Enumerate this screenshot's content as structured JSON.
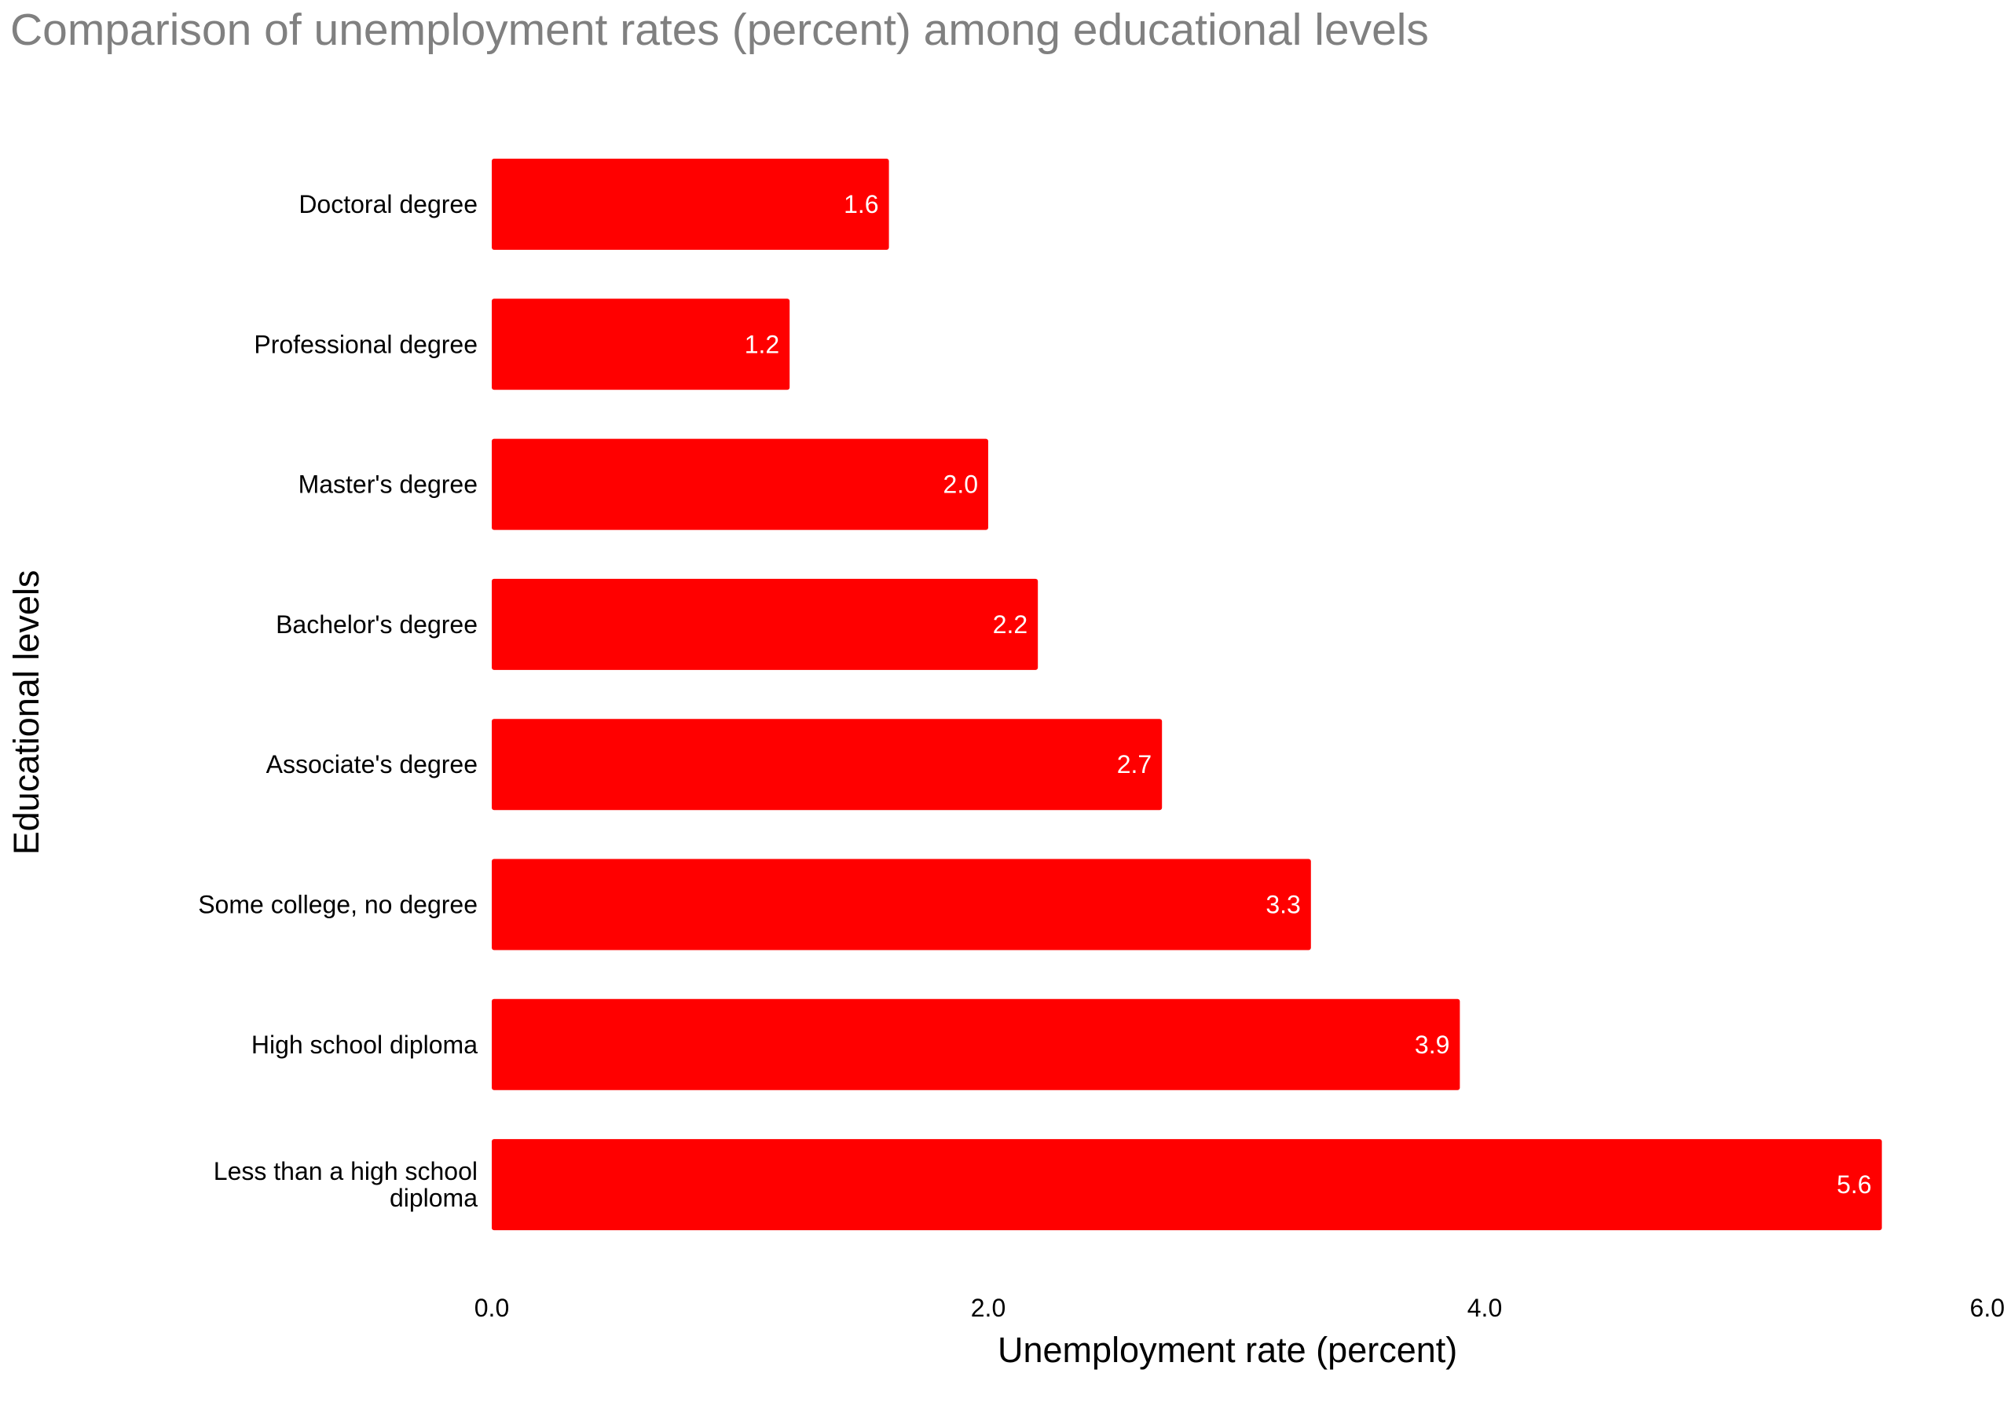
{
  "chart_data": {
    "type": "bar",
    "orientation": "horizontal",
    "title": "Comparison of unemployment rates (percent) among educational  levels",
    "xlabel": "Unemployment rate (percent)",
    "ylabel": "Educational levels",
    "categories": [
      "Doctoral degree",
      "Professional degree",
      "Master's degree",
      "Bachelor's degree",
      "Associate's degree",
      "Some college, no degree",
      "High school diploma",
      "Less than a high school diploma"
    ],
    "values": [
      1.6,
      1.2,
      2.0,
      2.2,
      2.7,
      3.3,
      3.9,
      5.6
    ],
    "value_labels": [
      "1.6",
      "1.2",
      "2.0",
      "2.2",
      "2.7",
      "3.3",
      "3.9",
      "5.6"
    ],
    "xlim": [
      0,
      6
    ],
    "x_ticks": [
      0,
      2,
      4,
      6
    ],
    "x_tick_labels": [
      "0.0",
      "2.0",
      "4.0",
      "6.0"
    ],
    "bar_color": "#ff0000",
    "value_label_color": "#ffffff",
    "title_color": "#808080",
    "grid": false,
    "legend": false
  }
}
